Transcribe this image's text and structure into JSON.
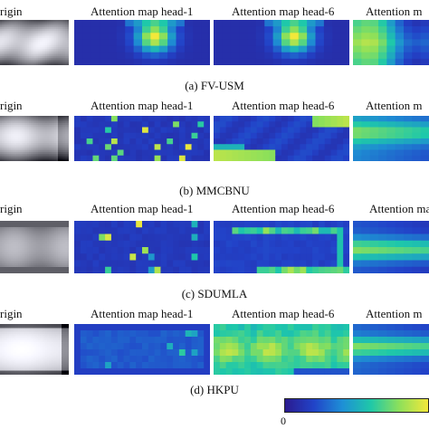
{
  "rows": [
    {
      "caption": "(a) FV-USM",
      "titles": [
        "rigin",
        "Attention map head-1",
        "Attention map head-6",
        "Attention m"
      ]
    },
    {
      "caption": "(b) MMCBNU",
      "titles": [
        "rigin",
        "Attention map head-1",
        "Attention map head-6",
        "Attention m"
      ]
    },
    {
      "caption": "(c) SDUMLA",
      "titles": [
        "rigin",
        "Attention map head-1",
        "Attention map head-6",
        "Attention ma"
      ]
    },
    {
      "caption": "(d) HKPU",
      "titles": [
        "rigin",
        "Attention map head-1",
        "Attention map head-6",
        "Attention m"
      ]
    }
  ],
  "colorbar": {
    "min_label": "0",
    "colormap": "viridis",
    "colors": [
      "#2b1b8f",
      "#2143c8",
      "#1e8fd6",
      "#1fc8a8",
      "#8ee05a",
      "#f3e83a"
    ]
  }
}
